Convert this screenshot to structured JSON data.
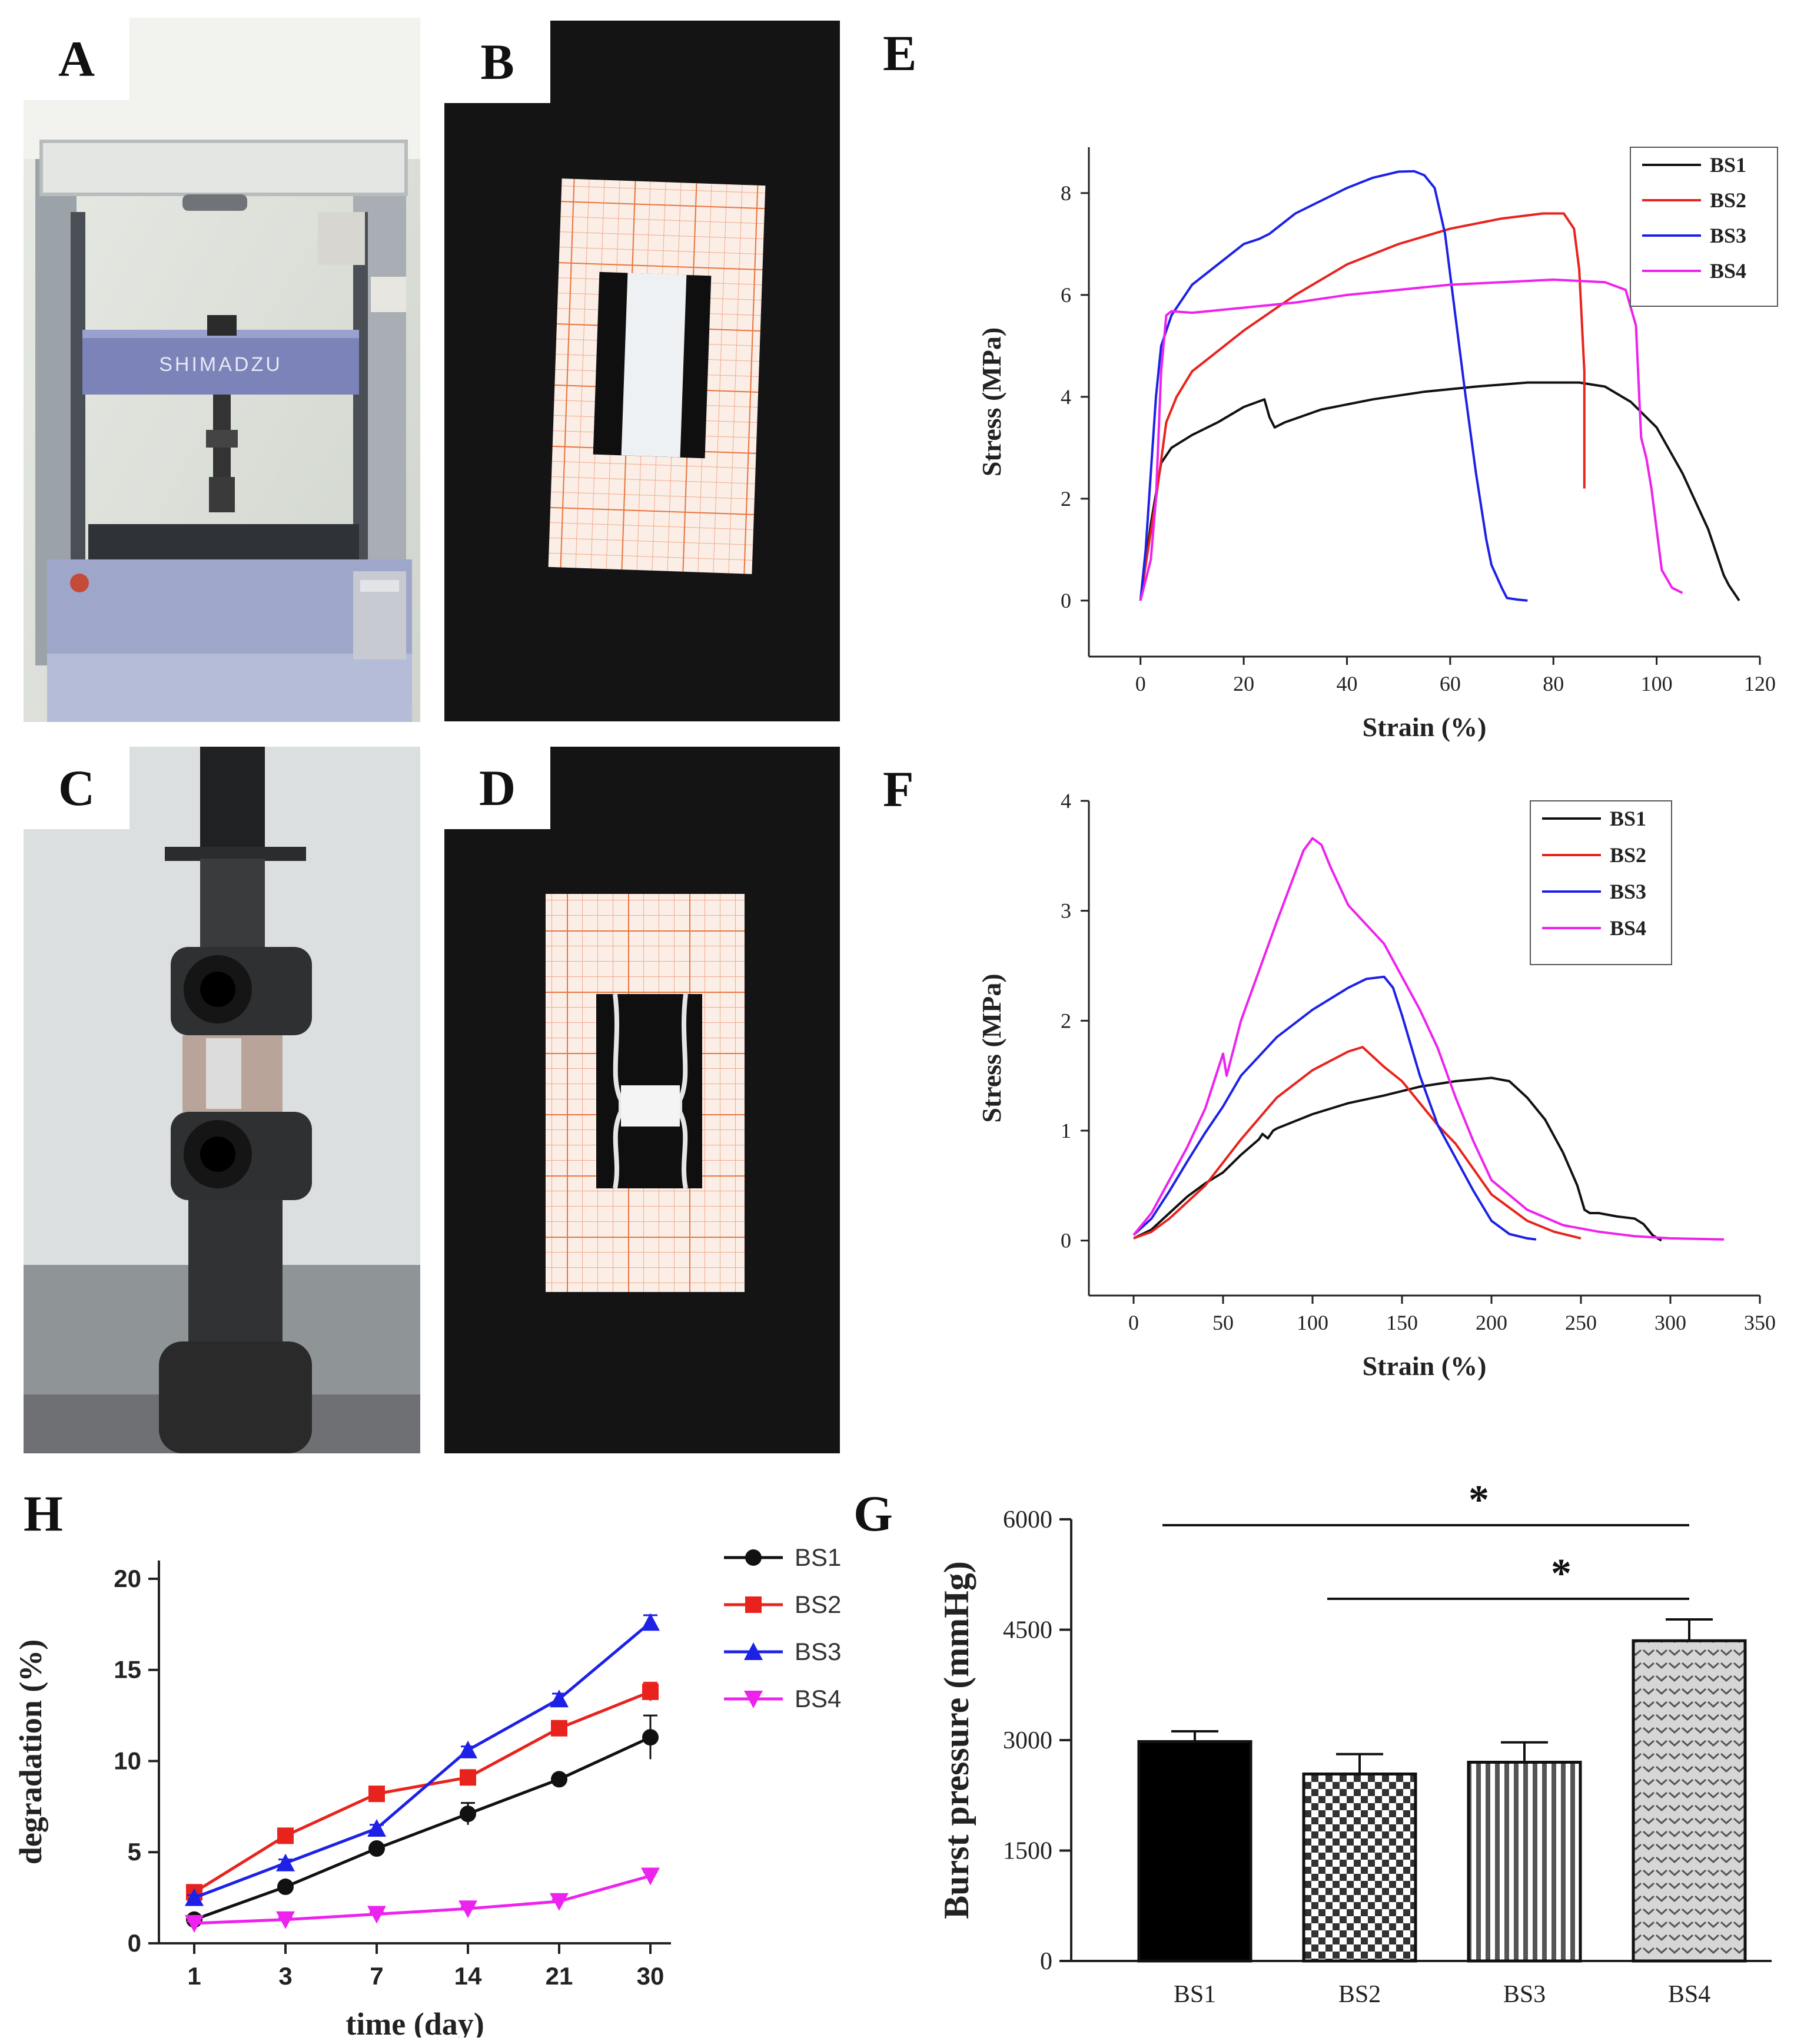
{
  "panels": {
    "A": {
      "label": "A",
      "brand_text": "SHIMADZU"
    },
    "B": {
      "label": "B"
    },
    "C": {
      "label": "C"
    },
    "D": {
      "label": "D"
    }
  },
  "colors": {
    "BS1": "#111111",
    "BS2": "#e8231d",
    "BS3": "#1d21e6",
    "BS4": "#ee22ee"
  },
  "chart_data": [
    {
      "id": "E",
      "panel_label": "E",
      "type": "line",
      "xlabel": "Strain (%)",
      "ylabel": "Stress (MPa)",
      "xlim": [
        -10,
        120
      ],
      "ylim": [
        -1.1,
        8.9
      ],
      "xticks": [
        0,
        20,
        40,
        60,
        80,
        100,
        120
      ],
      "yticks": [
        0,
        2,
        4,
        6,
        8
      ],
      "legend_position": "top-right",
      "series": [
        {
          "name": "BS1",
          "x": [
            0,
            2,
            4,
            6,
            10,
            15,
            20,
            24,
            25,
            26,
            28,
            35,
            45,
            55,
            65,
            75,
            85,
            90,
            95,
            100,
            105,
            110,
            113,
            114,
            116
          ],
          "y": [
            0,
            1.5,
            2.7,
            3.0,
            3.25,
            3.5,
            3.8,
            3.95,
            3.6,
            3.4,
            3.5,
            3.75,
            3.95,
            4.1,
            4.2,
            4.28,
            4.28,
            4.2,
            3.9,
            3.4,
            2.5,
            1.4,
            0.5,
            0.3,
            0
          ]
        },
        {
          "name": "BS2",
          "x": [
            0,
            1,
            3,
            5,
            7,
            10,
            20,
            30,
            40,
            50,
            60,
            70,
            78,
            82,
            84,
            85,
            86,
            86
          ],
          "y": [
            0,
            0.7,
            2.0,
            3.5,
            4.0,
            4.5,
            5.3,
            6.0,
            6.6,
            7.0,
            7.3,
            7.5,
            7.6,
            7.6,
            7.3,
            6.5,
            4.5,
            2.2
          ]
        },
        {
          "name": "BS3",
          "x": [
            0,
            1,
            2,
            3,
            4,
            6,
            10,
            15,
            20,
            23,
            25,
            30,
            40,
            45,
            50,
            53,
            55,
            57,
            59,
            61,
            63,
            65,
            67,
            68,
            70,
            71,
            73,
            75
          ],
          "y": [
            0,
            1.0,
            2.5,
            4.0,
            5.0,
            5.6,
            6.2,
            6.6,
            7.0,
            7.1,
            7.2,
            7.6,
            8.1,
            8.3,
            8.42,
            8.43,
            8.35,
            8.1,
            7.2,
            5.6,
            4.0,
            2.5,
            1.2,
            0.7,
            0.25,
            0.05,
            0.02,
            0
          ]
        },
        {
          "name": "BS4",
          "x": [
            0,
            2,
            3,
            4,
            5,
            6,
            10,
            20,
            30,
            40,
            50,
            60,
            70,
            80,
            90,
            94,
            96,
            97,
            98,
            99,
            100,
            101,
            103,
            105
          ],
          "y": [
            0,
            0.8,
            2.0,
            4.5,
            5.6,
            5.68,
            5.65,
            5.75,
            5.85,
            6.0,
            6.1,
            6.2,
            6.25,
            6.3,
            6.25,
            6.1,
            5.4,
            3.2,
            2.8,
            2.2,
            1.4,
            0.6,
            0.25,
            0.15
          ]
        }
      ]
    },
    {
      "id": "F",
      "panel_label": "F",
      "type": "line",
      "xlabel": "Strain (%)",
      "ylabel": "Stress (MPa)",
      "xlim": [
        -25,
        350
      ],
      "ylim": [
        -0.5,
        4
      ],
      "xticks": [
        0,
        50,
        100,
        150,
        200,
        250,
        300,
        350
      ],
      "yticks": [
        0,
        1,
        2,
        3,
        4
      ],
      "legend_position": "top-center",
      "series": [
        {
          "name": "BS1",
          "x": [
            0,
            10,
            20,
            30,
            40,
            50,
            60,
            70,
            72,
            75,
            78,
            80,
            100,
            120,
            140,
            160,
            180,
            200,
            210,
            220,
            230,
            240,
            248,
            252,
            255,
            260,
            270,
            280,
            285,
            290,
            295
          ],
          "y": [
            0.02,
            0.1,
            0.25,
            0.4,
            0.52,
            0.62,
            0.78,
            0.92,
            0.97,
            0.93,
            1.0,
            1.02,
            1.15,
            1.25,
            1.32,
            1.4,
            1.45,
            1.48,
            1.45,
            1.3,
            1.1,
            0.8,
            0.5,
            0.28,
            0.25,
            0.25,
            0.22,
            0.2,
            0.15,
            0.05,
            0
          ]
        },
        {
          "name": "BS2",
          "x": [
            0,
            10,
            20,
            40,
            60,
            80,
            100,
            120,
            128,
            140,
            150,
            160,
            170,
            180,
            190,
            200,
            220,
            235,
            250
          ],
          "y": [
            0.02,
            0.08,
            0.2,
            0.5,
            0.92,
            1.3,
            1.55,
            1.72,
            1.76,
            1.58,
            1.45,
            1.25,
            1.05,
            0.88,
            0.65,
            0.42,
            0.18,
            0.08,
            0.02
          ]
        },
        {
          "name": "BS3",
          "x": [
            0,
            10,
            20,
            30,
            40,
            50,
            60,
            80,
            100,
            120,
            130,
            140,
            145,
            150,
            160,
            170,
            180,
            190,
            200,
            210,
            220,
            225
          ],
          "y": [
            0.05,
            0.2,
            0.45,
            0.72,
            0.98,
            1.22,
            1.5,
            1.85,
            2.1,
            2.3,
            2.38,
            2.4,
            2.3,
            2.05,
            1.5,
            1.05,
            0.75,
            0.45,
            0.18,
            0.06,
            0.02,
            0.01
          ]
        },
        {
          "name": "BS4",
          "x": [
            0,
            10,
            20,
            30,
            40,
            48,
            50,
            52,
            60,
            80,
            95,
            100,
            105,
            110,
            120,
            140,
            160,
            170,
            180,
            190,
            200,
            220,
            240,
            260,
            280,
            300,
            330
          ],
          "y": [
            0.05,
            0.25,
            0.55,
            0.85,
            1.2,
            1.6,
            1.7,
            1.5,
            2.0,
            2.9,
            3.55,
            3.66,
            3.6,
            3.4,
            3.05,
            2.7,
            2.1,
            1.75,
            1.3,
            0.9,
            0.55,
            0.28,
            0.14,
            0.08,
            0.04,
            0.02,
            0.01
          ]
        }
      ]
    },
    {
      "id": "H",
      "panel_label": "H",
      "type": "line",
      "xlabel": "time (day)",
      "ylabel": "degradation (%)",
      "categories": [
        "1",
        "3",
        "7",
        "14",
        "21",
        "30"
      ],
      "ylim": [
        0,
        21
      ],
      "yticks": [
        0,
        5,
        10,
        15,
        20
      ],
      "legend_position": "top-right",
      "series": [
        {
          "name": "BS1",
          "marker": "circle",
          "values": [
            1.3,
            3.1,
            5.2,
            7.1,
            9.0,
            11.3
          ],
          "errors": [
            0.15,
            0.2,
            0.2,
            0.6,
            0.15,
            1.2
          ]
        },
        {
          "name": "BS2",
          "marker": "square",
          "values": [
            2.8,
            5.9,
            8.2,
            9.1,
            11.8,
            13.8
          ],
          "errors": [
            0.15,
            0.2,
            0.2,
            0.4,
            0.3,
            0.5
          ]
        },
        {
          "name": "BS3",
          "marker": "triangle-up",
          "values": [
            2.5,
            4.4,
            6.3,
            10.6,
            13.4,
            17.6
          ],
          "errors": [
            0.15,
            0.2,
            0.2,
            0.2,
            0.3,
            0.4
          ]
        },
        {
          "name": "BS4",
          "marker": "triangle-down",
          "values": [
            1.1,
            1.3,
            1.6,
            1.9,
            2.3,
            3.7
          ],
          "errors": [
            0.1,
            0.1,
            0.1,
            0.1,
            0.1,
            0.2
          ]
        }
      ]
    },
    {
      "id": "G",
      "panel_label": "G",
      "type": "bar",
      "xlabel": "",
      "ylabel": "Burst pressure (mmHg)",
      "categories": [
        "BS1",
        "BS2",
        "BS3",
        "BS4"
      ],
      "values": [
        2980,
        2540,
        2700,
        4350
      ],
      "errors": [
        140,
        270,
        270,
        290
      ],
      "ylim": [
        0,
        6000
      ],
      "yticks": [
        0,
        1500,
        3000,
        4500,
        6000
      ],
      "patterns": [
        "solid-black",
        "checkerboard",
        "vertical-stripes",
        "chevron-dots"
      ],
      "significance": [
        {
          "from": "BS1",
          "to": "BS4",
          "label": "*"
        },
        {
          "from": "BS2",
          "to": "BS4",
          "label": "*"
        }
      ]
    }
  ]
}
